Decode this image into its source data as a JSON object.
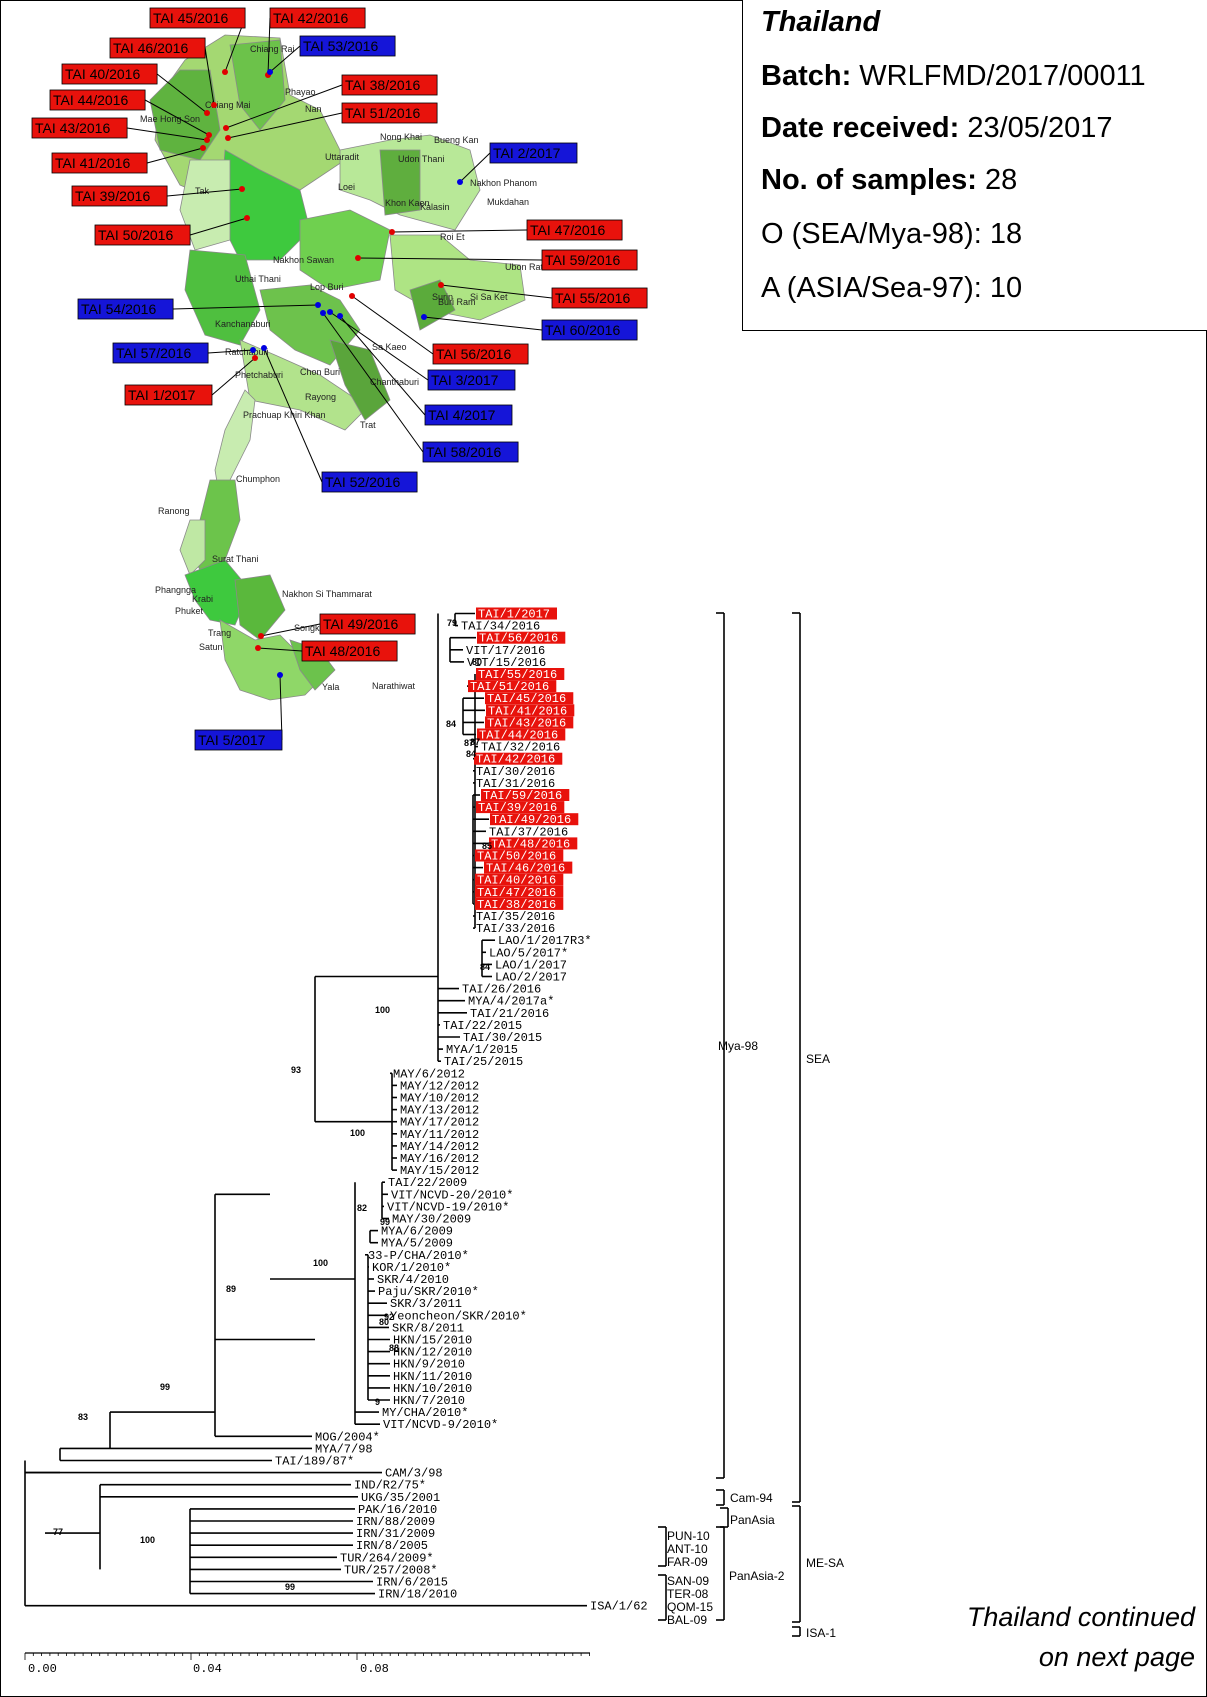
{
  "info": {
    "country": "Thailand",
    "batch_label": "Batch:",
    "batch_value": "WRLFMD/2017/00011",
    "date_label": "Date received:",
    "date_value": "23/05/2017",
    "samples_label": "No. of samples:",
    "samples_value": "28",
    "serotype_o": "O (SEA/Mya-98): 18",
    "serotype_a": "A (ASIA/Sea-97): 10"
  },
  "continued": [
    "Thailand continued",
    "on next page"
  ],
  "colors": {
    "red_label": "#e8120c",
    "blue_label": "#1515d8",
    "red_dot": "#e00000",
    "blue_dot": "#0000e0"
  },
  "map": {
    "labels": [
      {
        "text": "TAI 45/2016",
        "color": "red"
      },
      {
        "text": "TAI 42/2016",
        "color": "red"
      },
      {
        "text": "TAI 53/2016",
        "color": "blue"
      },
      {
        "text": "TAI 46/2016",
        "color": "red"
      },
      {
        "text": "TAI 40/2016",
        "color": "red"
      },
      {
        "text": "TAI 38/2016",
        "color": "red"
      },
      {
        "text": "TAI 44/2016",
        "color": "red"
      },
      {
        "text": "TAI 51/2016",
        "color": "red"
      },
      {
        "text": "TAI 43/2016",
        "color": "red"
      },
      {
        "text": "TAI 41/2016",
        "color": "red"
      },
      {
        "text": "TAI 2/2017",
        "color": "blue"
      },
      {
        "text": "TAI 39/2016",
        "color": "red"
      },
      {
        "text": "TAI 50/2016",
        "color": "red"
      },
      {
        "text": "TAI 47/2016",
        "color": "red"
      },
      {
        "text": "TAI 59/2016",
        "color": "red"
      },
      {
        "text": "TAI 55/2016",
        "color": "red"
      },
      {
        "text": "TAI 54/2016",
        "color": "blue"
      },
      {
        "text": "TAI 60/2016",
        "color": "blue"
      },
      {
        "text": "TAI 57/2016",
        "color": "blue"
      },
      {
        "text": "TAI 56/2016",
        "color": "red"
      },
      {
        "text": "TAI 1/2017",
        "color": "red"
      },
      {
        "text": "TAI 3/2017",
        "color": "blue"
      },
      {
        "text": "TAI 4/2017",
        "color": "blue"
      },
      {
        "text": "TAI 58/2016",
        "color": "blue"
      },
      {
        "text": "TAI 52/2016",
        "color": "blue"
      },
      {
        "text": "TAI 49/2016",
        "color": "red"
      },
      {
        "text": "TAI 48/2016",
        "color": "red"
      },
      {
        "text": "TAI 5/2017",
        "color": "blue"
      }
    ],
    "provinces": [
      "Chiang Rai",
      "Phayao",
      "Chiang Mai",
      "Nan",
      "Mae Hong Son",
      "Nong Khai",
      "Bueng Kan",
      "Uttaradit",
      "Loei",
      "Udon Thani",
      "Nakhon Phanom",
      "Tak",
      "Khon Kaen",
      "Kalasin",
      "Mukdahan",
      "Nakhon Sawan",
      "Roi Et",
      "Ubon Ratchathani",
      "Uthai Thani",
      "Lop Buri",
      "Surin",
      "Si Sa Ket",
      "Buri Ram",
      "Kanchanaburi",
      "Sa Kaeo",
      "Ratchaburi",
      "Chon Buri",
      "Chanthaburi",
      "Phetchaburi",
      "Rayong",
      "Trat",
      "Prachuap Khiri Khan",
      "Chumphon",
      "Ranong",
      "Surat Thani",
      "Phangnga",
      "Krabi",
      "Nakhon Si Thammarat",
      "Phuket",
      "Trang",
      "Songkhla",
      "Satun",
      "Pattani",
      "Yala",
      "Narathiwat"
    ]
  },
  "tree": {
    "taxa": [
      "TAI/1/2017",
      "TAI/34/2016",
      "TAI/56/2016",
      "VIT/17/2016",
      "VIT/15/2016",
      "TAI/55/2016",
      "TAI/51/2016",
      "TAI/45/2016",
      "TAI/41/2016",
      "TAI/43/2016",
      "TAI/44/2016",
      "TAI/32/2016",
      "TAI/42/2016",
      "TAI/30/2016",
      "TAI/31/2016",
      "TAI/59/2016",
      "TAI/39/2016",
      "TAI/49/2016",
      "TAI/37/2016",
      "TAI/48/2016",
      "TAI/50/2016",
      "TAI/46/2016",
      "TAI/40/2016",
      "TAI/47/2016",
      "TAI/38/2016",
      "TAI/35/2016",
      "TAI/33/2016",
      "LAO/1/2017R3*",
      "LAO/5/2017*",
      "LAO/1/2017",
      "LAO/2/2017",
      "TAI/26/2016",
      "MYA/4/2017a*",
      "TAI/21/2016",
      "TAI/22/2015",
      "TAI/30/2015",
      "MYA/1/2015",
      "TAI/25/2015",
      "MAY/6/2012",
      "MAY/12/2012",
      "MAY/10/2012",
      "MAY/13/2012",
      "MAY/17/2012",
      "MAY/11/2012",
      "MAY/14/2012",
      "MAY/16/2012",
      "MAY/15/2012",
      "TAI/22/2009",
      "VIT/NCVD-20/2010*",
      "VIT/NCVD-19/2010*",
      "MAY/30/2009",
      "MYA/6/2009",
      "MYA/5/2009",
      "33-P/CHA/2010*",
      "KOR/1/2010*",
      "SKR/4/2010",
      "Paju/SKR/2010*",
      "SKR/3/2011",
      "Yeoncheon/SKR/2010*",
      "SKR/8/2011",
      "HKN/15/2010",
      "HKN/12/2010",
      "HKN/9/2010",
      "HKN/11/2010",
      "HKN/10/2010",
      "HKN/7/2010",
      "MY/CHA/2010*",
      "VIT/NCVD-9/2010*",
      "MOG/2004*",
      "MYA/7/98",
      "TAI/189/87*",
      "CAM/3/98",
      "IND/R2/75*",
      "UKG/35/2001",
      "PAK/16/2010",
      "IRN/88/2009",
      "IRN/31/2009",
      "IRN/8/2005",
      "TUR/264/2009*",
      "TUR/257/2008*",
      "IRN/6/2015",
      "IRN/18/2010",
      "ISA/1/62"
    ],
    "highlighted": [
      "TAI/1/2017",
      "TAI/56/2016",
      "TAI/55/2016",
      "TAI/51/2016",
      "TAI/45/2016",
      "TAI/41/2016",
      "TAI/43/2016",
      "TAI/44/2016",
      "TAI/42/2016",
      "TAI/59/2016",
      "TAI/39/2016",
      "TAI/49/2016",
      "TAI/48/2016",
      "TAI/50/2016",
      "TAI/46/2016",
      "TAI/40/2016",
      "TAI/47/2016",
      "TAI/38/2016"
    ],
    "bootstrap": [
      "79",
      "80",
      "84",
      "87",
      "87",
      "84",
      "85",
      "84",
      "100",
      "93",
      "100",
      "82",
      "99",
      "100",
      "92",
      "88",
      "80",
      "89",
      "99",
      "83",
      "77",
      "100",
      "99",
      "9"
    ],
    "lineages": [
      "Mya-98",
      "Cam-94",
      "PanAsia",
      "PUN-10",
      "ANT-10",
      "FAR-09",
      "PanAsia-2",
      "SAN-09",
      "TER-08",
      "QOM-15",
      "BAL-09"
    ],
    "topotypes": [
      "SEA",
      "ME-SA",
      "ISA-1"
    ],
    "scale_ticks": [
      "0.00",
      "0.04",
      "0.08"
    ]
  }
}
